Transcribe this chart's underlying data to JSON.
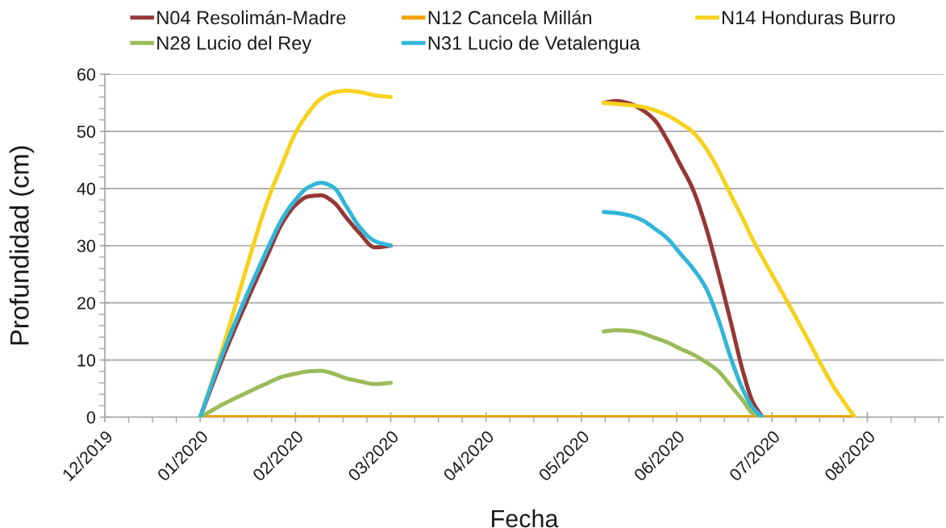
{
  "chart_data": {
    "type": "line",
    "xlabel": "Fecha",
    "ylabel": "Profundidad (cm)",
    "xlim": [
      "2019-12-31",
      "2020-09-20"
    ],
    "xticks": [
      {
        "value": "2019-12-31",
        "label": "12/2019"
      },
      {
        "value": "2020-01-07T12:00",
        "label": null
      },
      {
        "value": "2020-01-15",
        "label": null
      },
      {
        "value": "2020-01-22T12:00",
        "label": null
      },
      {
        "value": "2020-01-30",
        "label": "01/2020"
      },
      {
        "value": "2020-02-06T12:00",
        "label": null
      },
      {
        "value": "2020-02-14",
        "label": null
      },
      {
        "value": "2020-02-21T12:00",
        "label": null
      },
      {
        "value": "2020-02-29",
        "label": "02/2020"
      },
      {
        "value": "2020-03-07T12:00",
        "label": null
      },
      {
        "value": "2020-03-15",
        "label": null
      },
      {
        "value": "2020-03-22T12:00",
        "label": null
      },
      {
        "value": "2020-03-30",
        "label": "03/2020"
      },
      {
        "value": "2020-04-06T12:00",
        "label": null
      },
      {
        "value": "2020-04-14",
        "label": null
      },
      {
        "value": "2020-04-21T12:00",
        "label": null
      },
      {
        "value": "2020-04-29",
        "label": "04/2020"
      },
      {
        "value": "2020-05-06T12:00",
        "label": null
      },
      {
        "value": "2020-05-14",
        "label": null
      },
      {
        "value": "2020-05-21T12:00",
        "label": null
      },
      {
        "value": "2020-05-29",
        "label": "05/2020"
      },
      {
        "value": "2020-06-05T12:00",
        "label": null
      },
      {
        "value": "2020-06-13",
        "label": null
      },
      {
        "value": "2020-06-20T12:00",
        "label": null
      },
      {
        "value": "2020-06-28",
        "label": "06/2020"
      },
      {
        "value": "2020-07-05T12:00",
        "label": null
      },
      {
        "value": "2020-07-13",
        "label": null
      },
      {
        "value": "2020-07-20T12:00",
        "label": null
      },
      {
        "value": "2020-07-28",
        "label": "07/2020"
      },
      {
        "value": "2020-08-04T12:00",
        "label": null
      },
      {
        "value": "2020-08-12",
        "label": null
      },
      {
        "value": "2020-08-19T12:00",
        "label": null
      },
      {
        "value": "2020-08-27",
        "label": "08/2020"
      },
      {
        "value": "2020-09-03T12:00",
        "label": null
      },
      {
        "value": "2020-09-11",
        "label": null
      },
      {
        "value": "2020-09-18T12:00",
        "label": null
      }
    ],
    "ylim": [
      0,
      60
    ],
    "yticks": [
      0,
      {
        "value": 2,
        "label": null
      },
      {
        "value": 4,
        "label": null
      },
      {
        "value": 6,
        "label": null
      },
      {
        "value": 8,
        "label": null
      },
      10,
      {
        "value": 12,
        "label": null
      },
      {
        "value": 14,
        "label": null
      },
      {
        "value": 16,
        "label": null
      },
      {
        "value": 18,
        "label": null
      },
      20,
      {
        "value": 22,
        "label": null
      },
      {
        "value": 24,
        "label": null
      },
      {
        "value": 26,
        "label": null
      },
      {
        "value": 28,
        "label": null
      },
      30,
      {
        "value": 32,
        "label": null
      },
      {
        "value": 34,
        "label": null
      },
      {
        "value": 36,
        "label": null
      },
      {
        "value": 38,
        "label": null
      },
      40,
      {
        "value": 42,
        "label": null
      },
      {
        "value": 44,
        "label": null
      },
      {
        "value": 46,
        "label": null
      },
      {
        "value": 48,
        "label": null
      },
      50,
      {
        "value": 52,
        "label": null
      },
      {
        "value": 54,
        "label": null
      },
      {
        "value": 56,
        "label": null
      },
      {
        "value": 58,
        "label": null
      },
      60
    ],
    "grid": "y",
    "legend": "top",
    "line_style": "solid",
    "series": [
      {
        "name": "N04 Resolimán-Madre",
        "color": "#953735",
        "x": [
          "2020-01-30",
          "2020-02-06",
          "2020-02-13",
          "2020-02-20",
          "2020-02-25",
          "2020-02-29",
          "2020-03-04",
          "2020-03-08",
          "2020-03-12",
          "2020-03-16",
          "2020-03-20",
          "2020-03-25",
          "2020-03-30",
          "2020-05-01",
          "2020-06-05",
          "2020-06-09",
          "2020-06-13",
          "2020-06-17",
          "2020-06-21",
          "2020-06-25",
          "2020-06-29",
          "2020-07-03",
          "2020-07-07",
          "2020-07-11",
          "2020-07-15",
          "2020-07-19",
          "2020-07-22",
          "2020-07-25"
        ],
        "values": [
          0,
          10.2,
          19.4,
          28.1,
          34.1,
          37.1,
          38.6,
          38.8,
          37.6,
          34.9,
          32.3,
          29.7,
          30,
          null,
          55.0,
          55.3,
          54.9,
          53.8,
          52.0,
          48.5,
          44.3,
          40.0,
          33.6,
          25.5,
          16.7,
          7.7,
          2.6,
          0
        ]
      },
      {
        "name": "N12 Cancela Millán",
        "color": "#f5a000",
        "x": [
          "2020-01-30",
          "2020-03-30",
          "2020-06-05",
          "2020-07-25",
          "2020-08-23"
        ],
        "values": [
          0,
          0,
          0,
          0,
          0
        ]
      },
      {
        "name": "N14 Honduras Burro",
        "color": "#f7d11e",
        "x": [
          "2020-01-30",
          "2020-02-06",
          "2020-02-13",
          "2020-02-20",
          "2020-02-25",
          "2020-02-29",
          "2020-03-04",
          "2020-03-08",
          "2020-03-12",
          "2020-03-16",
          "2020-03-20",
          "2020-03-25",
          "2020-03-30",
          "2020-05-01",
          "2020-06-05",
          "2020-06-09",
          "2020-06-13",
          "2020-06-17",
          "2020-06-21",
          "2020-06-25",
          "2020-06-29",
          "2020-07-03",
          "2020-07-07",
          "2020-07-11",
          "2020-07-15",
          "2020-07-19",
          "2020-07-22",
          "2020-07-25",
          "2020-07-31",
          "2020-08-08",
          "2020-08-16",
          "2020-08-23"
        ],
        "values": [
          0,
          11.9,
          25,
          37.5,
          44.5,
          49.7,
          53.2,
          55.7,
          56.8,
          57.1,
          56.9,
          56.3,
          56,
          null,
          55.0,
          54.8,
          54.6,
          54.3,
          53.7,
          52.8,
          51.5,
          49.9,
          47.2,
          43.4,
          38.9,
          34.5,
          31.0,
          27.9,
          22.0,
          13.9,
          5.7,
          0
        ]
      },
      {
        "name": "N28 Lucio del Rey",
        "color": "#9bbb59",
        "x": [
          "2020-01-30",
          "2020-02-06",
          "2020-02-13",
          "2020-02-20",
          "2020-02-25",
          "2020-02-29",
          "2020-03-04",
          "2020-03-08",
          "2020-03-12",
          "2020-03-16",
          "2020-03-20",
          "2020-03-25",
          "2020-03-30",
          "2020-05-01",
          "2020-06-05",
          "2020-06-09",
          "2020-06-13",
          "2020-06-17",
          "2020-06-21",
          "2020-06-25",
          "2020-06-29",
          "2020-07-03",
          "2020-07-07",
          "2020-07-11",
          "2020-07-15",
          "2020-07-19",
          "2020-07-22",
          "2020-07-25"
        ],
        "values": [
          0,
          2.2,
          4.1,
          5.9,
          7.1,
          7.6,
          8.0,
          8.1,
          7.6,
          6.8,
          6.3,
          5.8,
          6.0,
          null,
          15.0,
          15.2,
          15.1,
          14.7,
          13.9,
          13.1,
          12.0,
          11.0,
          9.7,
          8.1,
          5.5,
          2.8,
          0.6,
          0
        ]
      },
      {
        "name": "N31 Lucio de Vetalengua",
        "color": "#31b5d8",
        "x": [
          "2020-01-30",
          "2020-02-06",
          "2020-02-13",
          "2020-02-20",
          "2020-02-25",
          "2020-02-29",
          "2020-03-04",
          "2020-03-08",
          "2020-03-12",
          "2020-03-16",
          "2020-03-20",
          "2020-03-25",
          "2020-03-30",
          "2020-05-01",
          "2020-06-05",
          "2020-06-09",
          "2020-06-13",
          "2020-06-17",
          "2020-06-21",
          "2020-06-25",
          "2020-06-29",
          "2020-07-03",
          "2020-07-07",
          "2020-07-11",
          "2020-07-15",
          "2020-07-19",
          "2020-07-22",
          "2020-07-25"
        ],
        "values": [
          0,
          11.0,
          20.5,
          29.2,
          34.9,
          38.0,
          40.2,
          41.0,
          40.2,
          36.9,
          33.4,
          30.8,
          30.0,
          null,
          35.9,
          35.7,
          35.3,
          34.5,
          33.0,
          31.3,
          28.7,
          26.1,
          22.8,
          17.3,
          10.4,
          4.6,
          1.6,
          0
        ]
      }
    ]
  }
}
